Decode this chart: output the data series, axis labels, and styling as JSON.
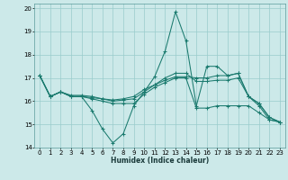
{
  "title": "",
  "xlabel": "Humidex (Indice chaleur)",
  "ylabel": "",
  "xlim": [
    -0.5,
    23.5
  ],
  "ylim": [
    14,
    20.2
  ],
  "yticks": [
    14,
    15,
    16,
    17,
    18,
    19,
    20
  ],
  "xticks": [
    0,
    1,
    2,
    3,
    4,
    5,
    6,
    7,
    8,
    9,
    10,
    11,
    12,
    13,
    14,
    15,
    16,
    17,
    18,
    19,
    20,
    21,
    22,
    23
  ],
  "bg_color": "#cce9e9",
  "grid_color": "#99cccc",
  "line_color": "#1a7a6e",
  "lines": [
    {
      "x": [
        0,
        1,
        2,
        3,
        4,
        5,
        6,
        7,
        8,
        9,
        10,
        11,
        12,
        13,
        14,
        15,
        16,
        17,
        18,
        19,
        20,
        21,
        22,
        23
      ],
      "y": [
        17.1,
        16.2,
        16.4,
        16.2,
        16.2,
        15.6,
        14.8,
        14.2,
        14.6,
        15.8,
        16.4,
        17.05,
        18.15,
        19.85,
        18.6,
        15.8,
        17.5,
        17.5,
        17.1,
        17.2,
        16.2,
        15.8,
        15.2,
        15.1
      ]
    },
    {
      "x": [
        0,
        1,
        2,
        3,
        4,
        5,
        6,
        7,
        8,
        9,
        10,
        11,
        12,
        13,
        14,
        15,
        16,
        17,
        18,
        19,
        20,
        21,
        22,
        23
      ],
      "y": [
        17.1,
        16.2,
        16.4,
        16.2,
        16.2,
        16.15,
        16.1,
        16.05,
        16.1,
        16.2,
        16.5,
        16.7,
        16.9,
        17.05,
        17.05,
        17.0,
        17.0,
        17.1,
        17.1,
        17.2,
        16.2,
        15.9,
        15.3,
        15.1
      ]
    },
    {
      "x": [
        0,
        1,
        2,
        3,
        4,
        5,
        6,
        7,
        8,
        9,
        10,
        11,
        12,
        13,
        14,
        15,
        16,
        17,
        18,
        19,
        20,
        21,
        22,
        23
      ],
      "y": [
        17.1,
        16.2,
        16.4,
        16.2,
        16.2,
        16.1,
        16.0,
        15.9,
        15.9,
        15.9,
        16.3,
        16.6,
        16.8,
        17.0,
        17.0,
        15.7,
        15.7,
        15.8,
        15.8,
        15.8,
        15.8,
        15.5,
        15.2,
        15.1
      ]
    },
    {
      "x": [
        0,
        1,
        2,
        3,
        4,
        5,
        6,
        7,
        8,
        9,
        10,
        11,
        12,
        13,
        14,
        15,
        16,
        17,
        18,
        19,
        20,
        21,
        22,
        23
      ],
      "y": [
        17.1,
        16.2,
        16.4,
        16.25,
        16.25,
        16.2,
        16.1,
        16.0,
        16.05,
        16.1,
        16.4,
        16.7,
        17.0,
        17.2,
        17.2,
        16.85,
        16.85,
        16.9,
        16.9,
        17.0,
        16.2,
        15.9,
        15.3,
        15.1
      ]
    }
  ]
}
